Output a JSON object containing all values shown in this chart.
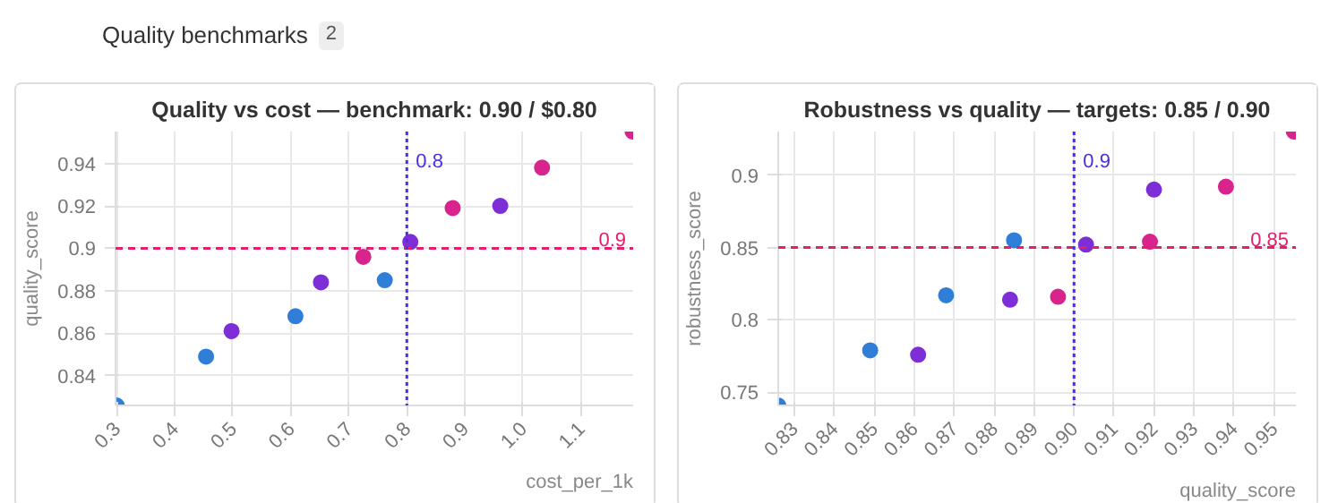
{
  "chart_data": [
    {
      "type": "other",
      "title": "Quality benchmarks",
      "annotations": [
        "2"
      ]
    },
    {
      "type": "scatter",
      "title": "Quality vs cost — benchmark: 0.90 / $0.80",
      "xlabel": "cost_per_1k",
      "ylabel": "quality_score",
      "marker": "circle",
      "grid": true,
      "xlim": [
        0.298,
        1.19
      ],
      "ylim": [
        0.826,
        0.955
      ],
      "xticks": [
        0.3,
        0.4,
        0.5,
        0.6,
        0.7,
        0.8,
        0.9,
        {
          "value": 1.0,
          "label": "1.0"
        },
        1.1
      ],
      "yticks": [
        0.84,
        0.86,
        0.88,
        0.9,
        0.92,
        0.94
      ],
      "series": [
        {
          "color": "#2f7ed8",
          "x": [
            0.3,
            0.454,
            0.608,
            0.762
          ],
          "values": [
            0.826,
            0.849,
            0.868,
            0.885
          ]
        },
        {
          "color": "#7e2ed6",
          "x": [
            0.498,
            0.652,
            0.806,
            0.961
          ],
          "values": [
            0.861,
            0.884,
            0.903,
            0.92
          ]
        },
        {
          "color": "#d8248c",
          "x": [
            0.725,
            0.879,
            1.033,
            1.189
          ],
          "values": [
            0.896,
            0.919,
            0.938,
            0.955
          ]
        }
      ],
      "ref_lines": [
        {
          "axis": "y",
          "value": 0.9,
          "label": "0.9",
          "color": "#e3206e",
          "line_style": "dashed"
        },
        {
          "axis": "x",
          "value": 0.8,
          "label": "0.8",
          "color": "#4a2fe0",
          "line_style": "dotted"
        }
      ]
    },
    {
      "type": "scatter",
      "title": "Robustness vs quality — targets: 0.85 / 0.90",
      "xlabel": "quality_score",
      "ylabel": "robustness_score",
      "marker": "circle",
      "grid": true,
      "xlim": [
        0.826,
        0.9555
      ],
      "ylim": [
        0.741,
        0.93
      ],
      "xticks": [
        0.83,
        0.84,
        0.85,
        0.86,
        0.87,
        0.88,
        0.89,
        {
          "value": 0.9,
          "label": "0.90"
        },
        0.91,
        0.92,
        0.93,
        0.94,
        0.95
      ],
      "yticks": [
        0.75,
        0.8,
        0.85,
        0.9
      ],
      "series": [
        {
          "color": "#2f7ed8",
          "x": [
            0.826,
            0.849,
            0.868,
            0.885
          ],
          "values": [
            0.741,
            0.779,
            0.817,
            0.855
          ]
        },
        {
          "color": "#7e2ed6",
          "x": [
            0.861,
            0.884,
            0.903,
            0.92
          ],
          "values": [
            0.776,
            0.814,
            0.852,
            0.89
          ]
        },
        {
          "color": "#d8248c",
          "x": [
            0.896,
            0.919,
            0.938,
            0.955
          ],
          "values": [
            0.816,
            0.854,
            0.892,
            0.93
          ]
        }
      ],
      "ref_lines": [
        {
          "axis": "y",
          "value": 0.85,
          "label": "0.85",
          "color": "#e3206e",
          "line_style": "dashed"
        },
        {
          "axis": "x",
          "value": 0.9,
          "label": "0.9",
          "color": "#4a2fe0",
          "line_style": "dotted"
        }
      ]
    }
  ]
}
